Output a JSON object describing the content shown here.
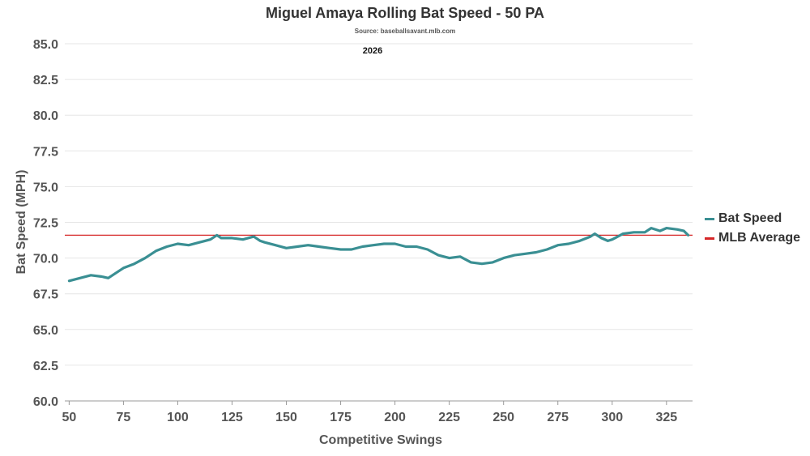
{
  "header": {
    "title": "Miguel Amaya Rolling Bat Speed - 50 PA",
    "source": "Source: baseballsavant.mlb.com",
    "year": "2026"
  },
  "legend": {
    "items": [
      {
        "label": "Bat Speed",
        "color": "#3a8f93"
      },
      {
        "label": "MLB Average",
        "color": "#d62728"
      }
    ]
  },
  "chart_data": {
    "type": "line",
    "xlabel": "Competitive Swings",
    "ylabel": "Bat Speed (MPH)",
    "xlim": [
      48,
      337
    ],
    "ylim": [
      60,
      85
    ],
    "xticks": [
      "50",
      "75",
      "100",
      "125",
      "150",
      "175",
      "200",
      "225",
      "250",
      "275",
      "300",
      "325"
    ],
    "yticks": [
      "60.0",
      "62.5",
      "65.0",
      "67.5",
      "70.0",
      "72.5",
      "75.0",
      "77.5",
      "80.0",
      "82.5",
      "85.0"
    ],
    "grid": true,
    "legend_position": "right",
    "mlb_average": 71.6,
    "series": [
      {
        "name": "Bat Speed",
        "color": "#3a8f93",
        "x": [
          50,
          55,
          60,
          65,
          68,
          72,
          75,
          80,
          85,
          90,
          95,
          100,
          105,
          110,
          115,
          118,
          120,
          125,
          130,
          135,
          138,
          140,
          145,
          150,
          155,
          160,
          165,
          170,
          175,
          180,
          185,
          190,
          195,
          200,
          205,
          210,
          215,
          220,
          225,
          230,
          235,
          240,
          245,
          250,
          255,
          260,
          265,
          270,
          275,
          280,
          285,
          290,
          292,
          295,
          298,
          300,
          305,
          310,
          315,
          318,
          322,
          325,
          330,
          333,
          335
        ],
        "y": [
          68.4,
          68.6,
          68.8,
          68.7,
          68.6,
          69.0,
          69.3,
          69.6,
          70.0,
          70.5,
          70.8,
          71.0,
          70.9,
          71.1,
          71.3,
          71.6,
          71.4,
          71.4,
          71.3,
          71.5,
          71.2,
          71.1,
          70.9,
          70.7,
          70.8,
          70.9,
          70.8,
          70.7,
          70.6,
          70.6,
          70.8,
          70.9,
          71.0,
          71.0,
          70.8,
          70.8,
          70.6,
          70.2,
          70.0,
          70.1,
          69.7,
          69.6,
          69.7,
          70.0,
          70.2,
          70.3,
          70.4,
          70.6,
          70.9,
          71.0,
          71.2,
          71.5,
          71.7,
          71.4,
          71.2,
          71.3,
          71.7,
          71.8,
          71.8,
          72.1,
          71.9,
          72.1,
          72.0,
          71.9,
          71.6
        ]
      }
    ]
  }
}
